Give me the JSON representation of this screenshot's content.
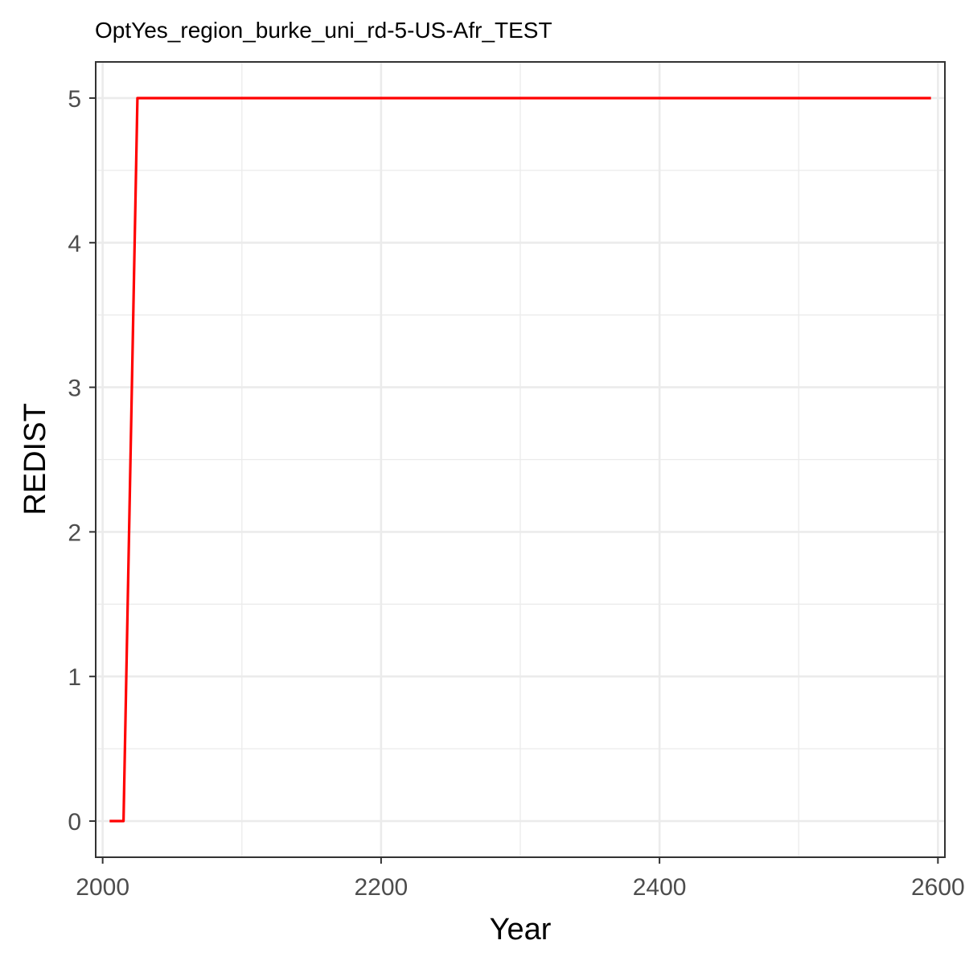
{
  "chart_data": {
    "type": "line",
    "title": "OptYes_region_burke_uni_rd-5-US-Afr_TEST",
    "xlabel": "Year",
    "ylabel": "REDIST",
    "xlim": [
      1995,
      2605
    ],
    "ylim": [
      -0.25,
      5.25
    ],
    "x_ticks": [
      2000,
      2200,
      2400,
      2600
    ],
    "y_ticks": [
      0,
      1,
      2,
      3,
      4,
      5
    ],
    "grid": true,
    "legend": "none",
    "series": [
      {
        "color": "#ff0000",
        "x": [
          2005,
          2015,
          2025,
          2595
        ],
        "y": [
          0,
          0,
          5,
          5
        ]
      }
    ]
  }
}
